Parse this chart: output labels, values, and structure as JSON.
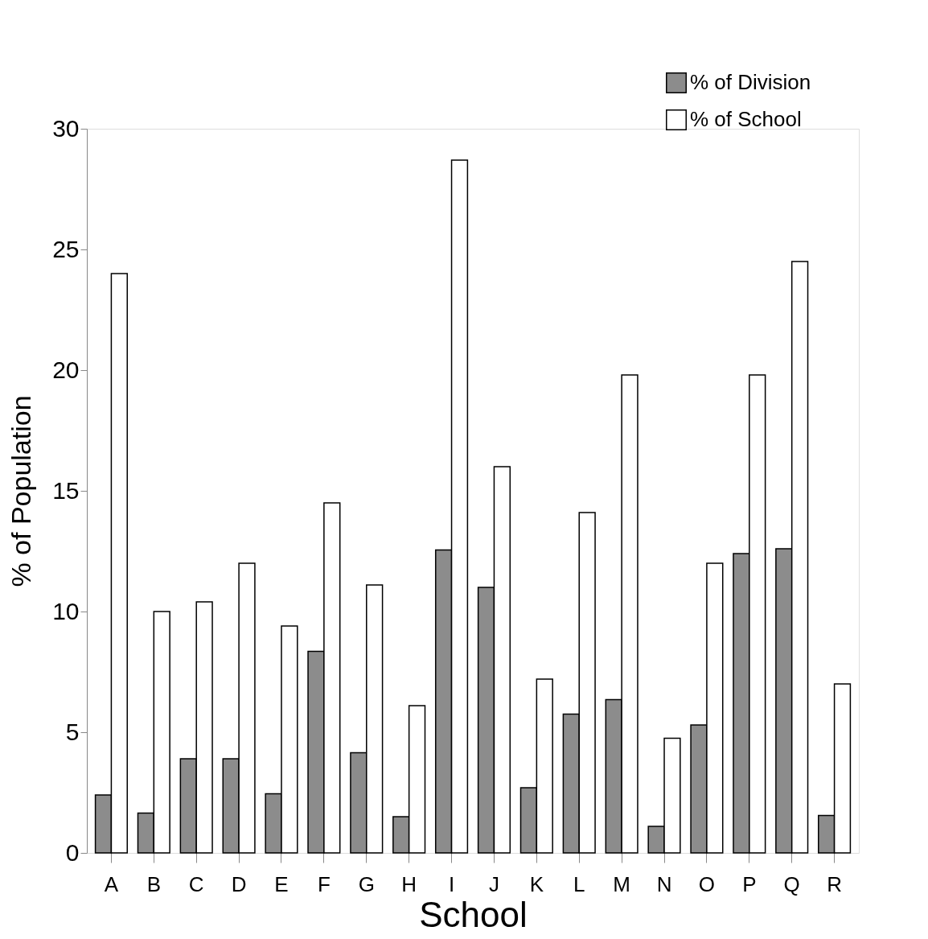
{
  "chart_data": {
    "type": "bar",
    "xlabel": "School",
    "ylabel": "% of Population",
    "categories": [
      "A",
      "B",
      "C",
      "D",
      "E",
      "F",
      "G",
      "H",
      "I",
      "J",
      "K",
      "L",
      "M",
      "N",
      "O",
      "P",
      "Q",
      "R"
    ],
    "series": [
      {
        "name": "% of Division",
        "color": "#8c8c8c",
        "values": [
          2.4,
          1.65,
          3.9,
          3.9,
          2.45,
          8.35,
          4.15,
          1.5,
          12.55,
          11.0,
          2.7,
          5.75,
          6.35,
          1.1,
          5.3,
          12.4,
          12.6,
          1.55
        ]
      },
      {
        "name": "% of School",
        "color": "#ffffff",
        "values": [
          24.0,
          10.0,
          10.4,
          12.0,
          9.4,
          14.5,
          11.1,
          6.1,
          28.7,
          16.0,
          7.2,
          14.1,
          19.8,
          4.75,
          12.0,
          19.8,
          24.5,
          7.0
        ]
      }
    ],
    "ylim": [
      0,
      30
    ],
    "yticks": [
      0,
      5,
      10,
      15,
      20,
      25,
      30
    ],
    "grid": false,
    "legend": "top right"
  }
}
